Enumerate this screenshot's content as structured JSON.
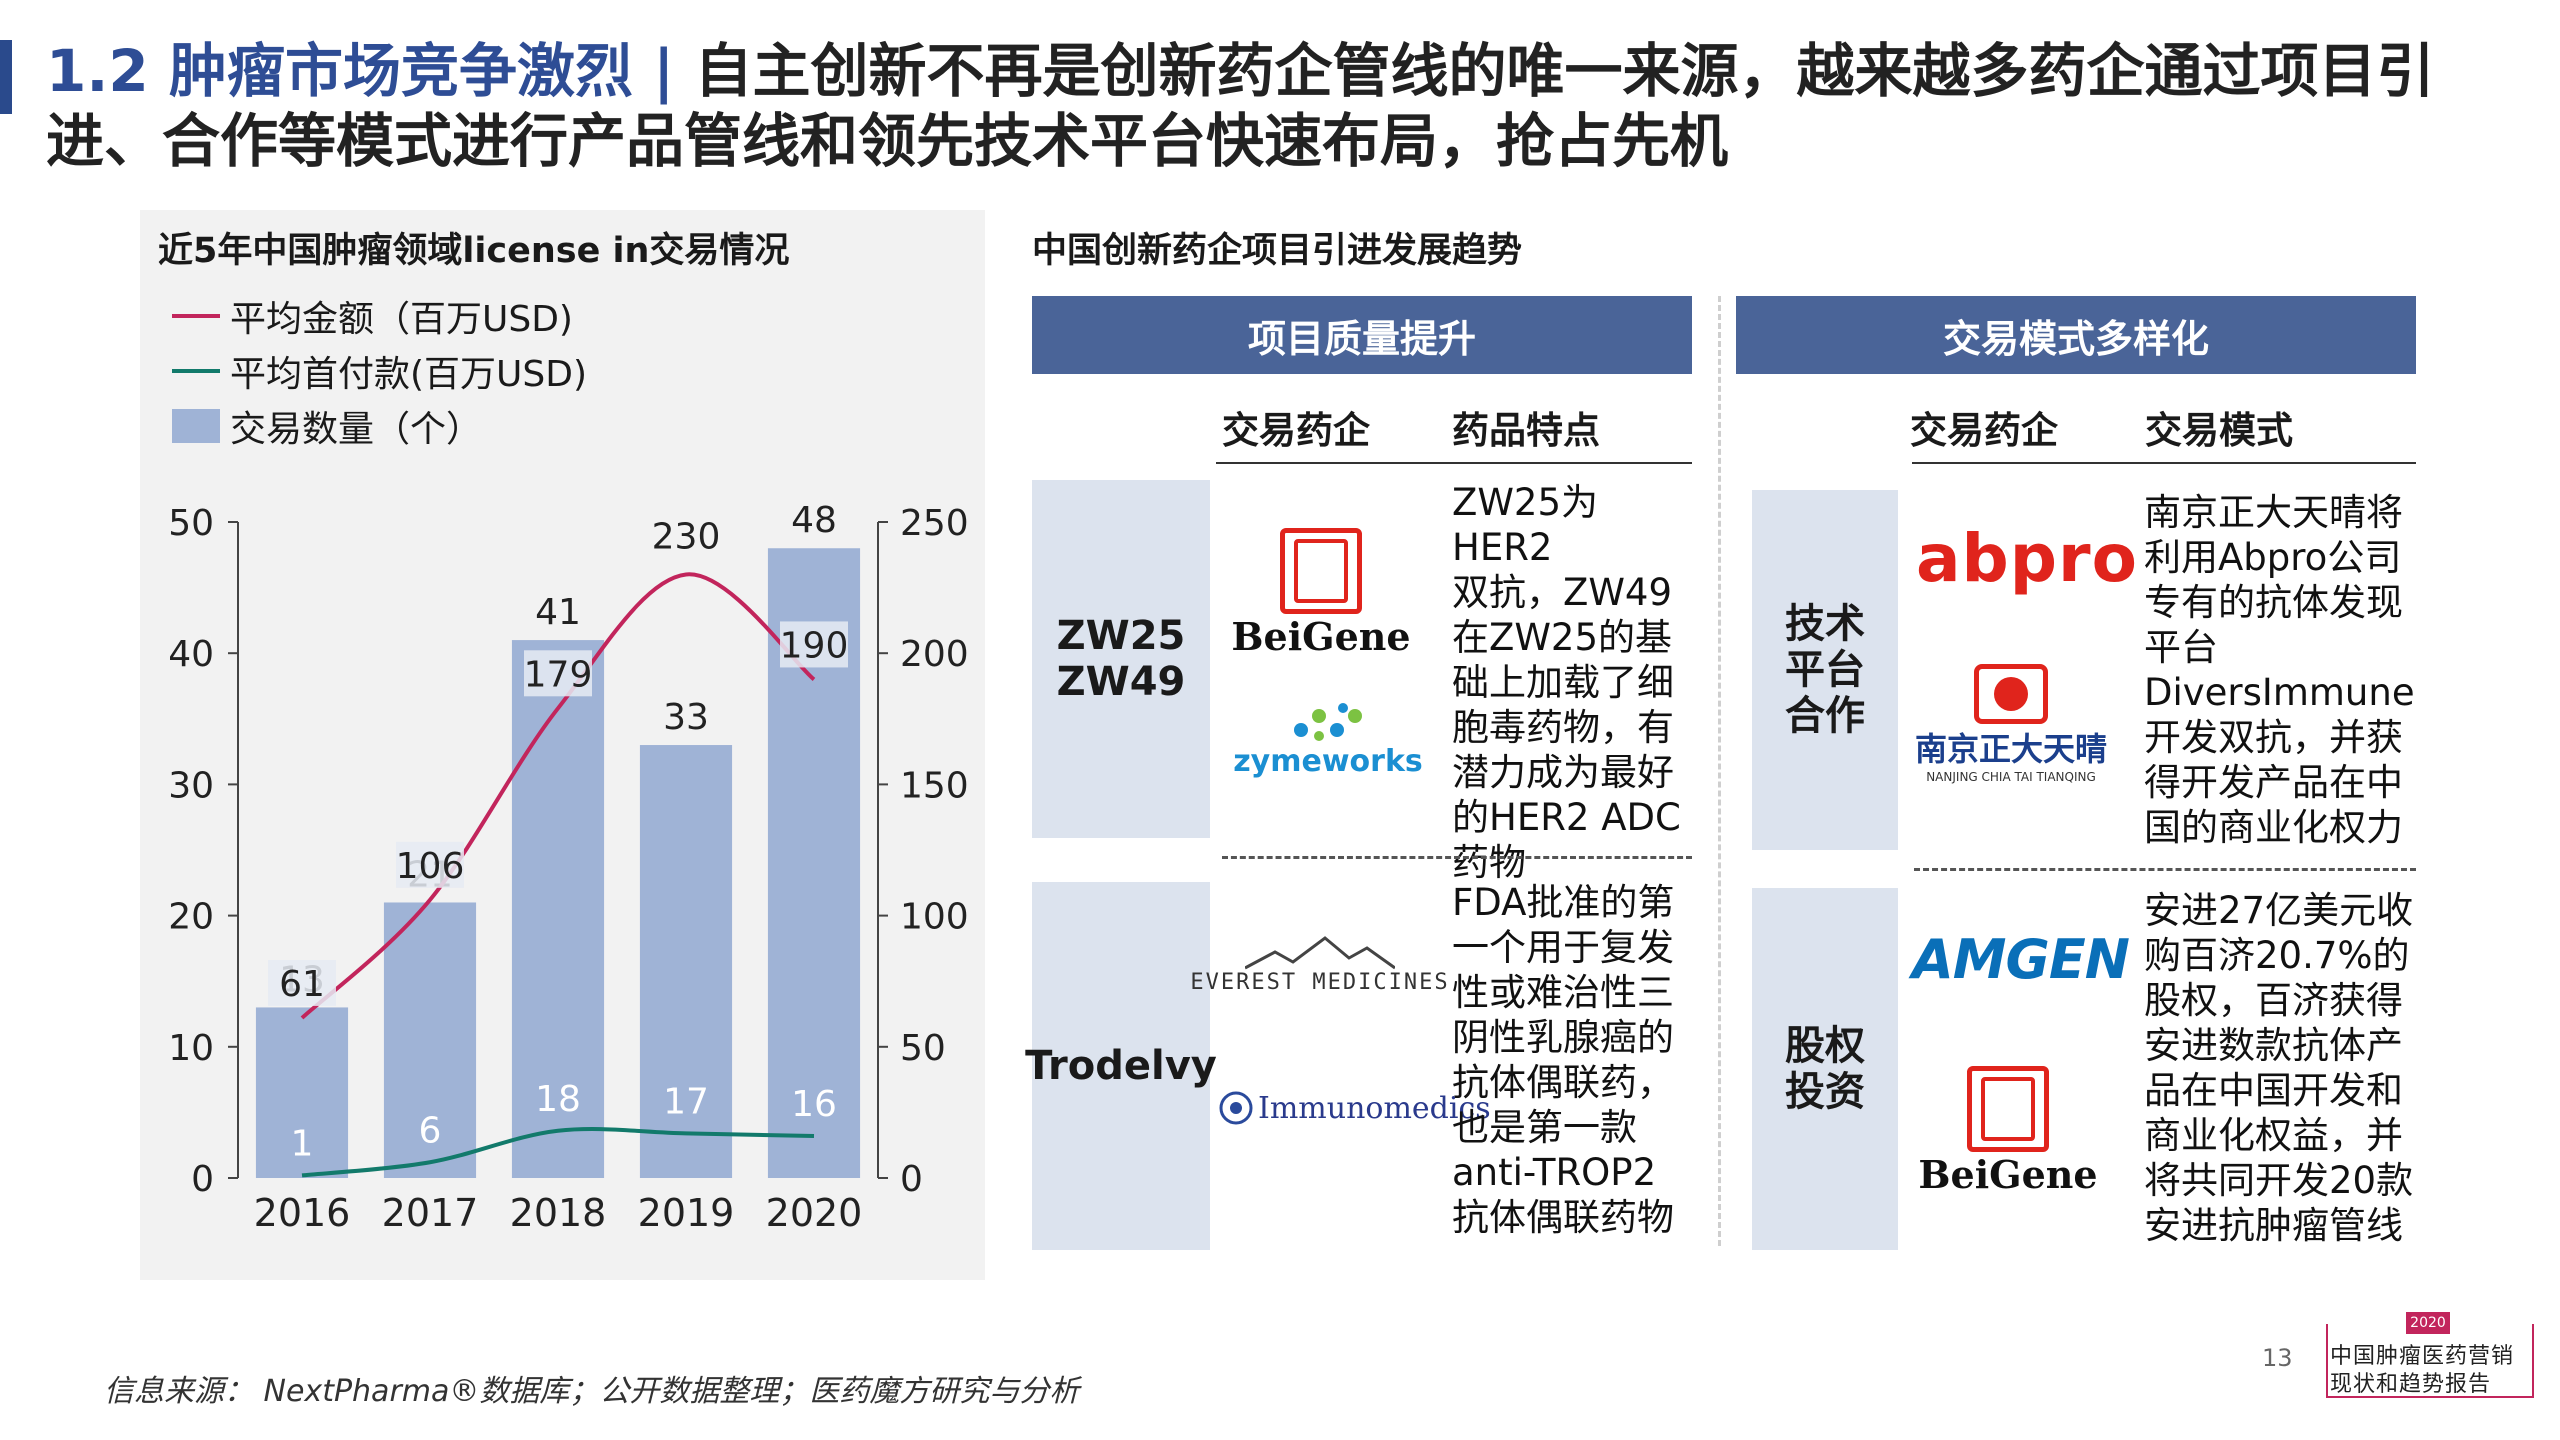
{
  "header": {
    "section_num": "1.2 肿瘤市场竞争激烈",
    "separator": "|",
    "line1": "自主创新不再是创新药企管线的唯一来源，越来越多药企通过项目引",
    "line2": "进、合作等模式进行产品管线和领先技术平台快速布局，抢占先机"
  },
  "chart_data": {
    "type": "bar",
    "title": "近5年中国肿瘤领域license in交易情况",
    "categories": [
      "2016",
      "2017",
      "2018",
      "2019",
      "2020"
    ],
    "series": [
      {
        "name": "交易数量（个）",
        "kind": "bar",
        "axis": "left",
        "values": [
          13,
          21,
          41,
          33,
          48
        ],
        "color": "#9fb3d6"
      },
      {
        "name": "平均金额（百万USD)",
        "kind": "line",
        "axis": "right",
        "values": [
          61,
          106,
          179,
          230,
          190
        ],
        "color": "#c2255c"
      },
      {
        "name": "平均首付款(百万USD)",
        "kind": "line",
        "axis": "right",
        "values": [
          1,
          6,
          18,
          17,
          16
        ],
        "color": "#127a6b"
      }
    ],
    "y_left": {
      "min": 0,
      "max": 50,
      "ticks": [
        "0",
        "10",
        "20",
        "30",
        "40",
        "50"
      ]
    },
    "y_right": {
      "min": 0,
      "max": 250,
      "ticks": [
        "0",
        "50",
        "100",
        "150",
        "200",
        "250"
      ]
    },
    "legend_position": "top-left"
  },
  "right": {
    "title": "中国创新药企项目引进发展趋势",
    "quality": {
      "band": "项目质量提升",
      "col1": "交易药企",
      "col2": "药品特点",
      "rows": [
        {
          "label": "ZW25\nZW49",
          "logos": [
            "BeiGene",
            "zymeworks"
          ],
          "desc": "ZW25为HER2\n双抗，ZW49\n在ZW25的基\n础上加载了细\n胞毒药物，有\n潜力成为最好\n的HER2 ADC\n药物"
        },
        {
          "label": "Trodelvy",
          "logos": [
            "EVEREST MEDICINES",
            "Immunomedics"
          ],
          "desc": "FDA批准的第\n一个用于复发\n性或难治性三\n阴性乳腺癌的\n抗体偶联药，\n也是第一款\nanti-TROP2\n抗体偶联药物"
        }
      ]
    },
    "mode": {
      "band": "交易模式多样化",
      "col1": "交易药企",
      "col2": "交易模式",
      "rows": [
        {
          "label": "技术\n平台\n合作",
          "logos": [
            "abpro",
            "南京正大天晴",
            "NANJING CHIA TAI TIANQING"
          ],
          "desc": "南京正大天晴将\n利用Abpro公司\n专有的抗体发现\n平台\nDiversImmune\n开发双抗，并获\n得开发产品在中\n国的商业化权力"
        },
        {
          "label": "股权\n投资",
          "logos": [
            "AMGEN",
            "BeiGene"
          ],
          "desc": "安进27亿美元收\n购百济20.7%的\n股权，百济获得\n安进数款抗体产\n品在中国开发和\n商业化权益，并\n将共同开发20款\n安进抗肿瘤管线"
        }
      ]
    }
  },
  "footer": {
    "source": "信息来源： NextPharma®数据库；公开数据整理；医药魔方研究与分析",
    "page": "13",
    "badge_year": "2020",
    "badge_line1": "中国肿瘤医药营销",
    "badge_line2": "现状和趋势报告"
  }
}
